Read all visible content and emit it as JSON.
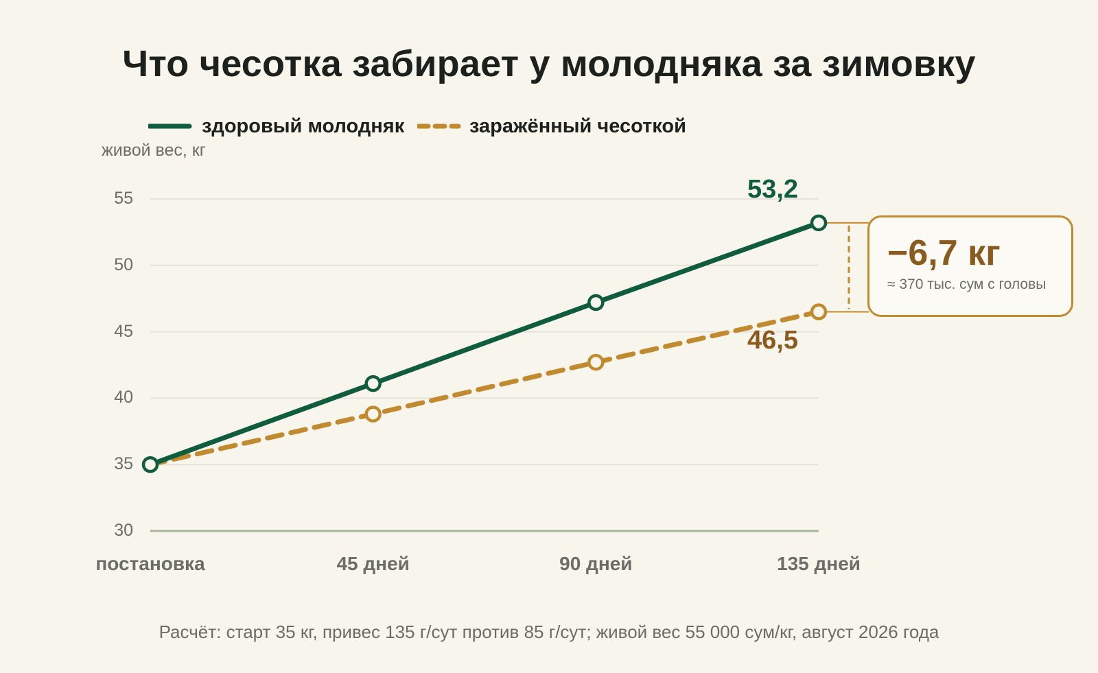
{
  "title": "Что чесотка забирает у молодняка за зимовку",
  "colors": {
    "healthy": "#0f5c3f",
    "infected": "#c28a2e",
    "infected_text": "#8a5a1f",
    "grid": "#e5e2d8",
    "baseline": "#a7b79c",
    "background": "#f8f5ed"
  },
  "chart_data": {
    "type": "line",
    "ylabel": "живой вес, кг",
    "ylim": [
      30,
      55
    ],
    "yticks": [
      55,
      50,
      45,
      40,
      35,
      30
    ],
    "categories": [
      "постановка",
      "45 дней",
      "90 дней",
      "135 дней"
    ],
    "series": [
      {
        "name": "здоровый молодняк",
        "values": [
          35,
          41.1,
          47.2,
          53.2
        ],
        "end_label": "53,2",
        "style": "solid"
      },
      {
        "name": "заражённый чесоткой",
        "values": [
          35,
          38.8,
          42.7,
          46.5
        ],
        "end_label": "46,5",
        "style": "dashed"
      }
    ],
    "legend_position": "top-left",
    "grid": true,
    "difference": {
      "value_text": "−6,7 кг",
      "note": "≈ 370 тыс. сум с головы"
    }
  },
  "footnote": "Расчёт: старт 35 кг, привес 135 г/сут против 85 г/сут; живой вес 55 000 сум/кг, август 2026 года"
}
